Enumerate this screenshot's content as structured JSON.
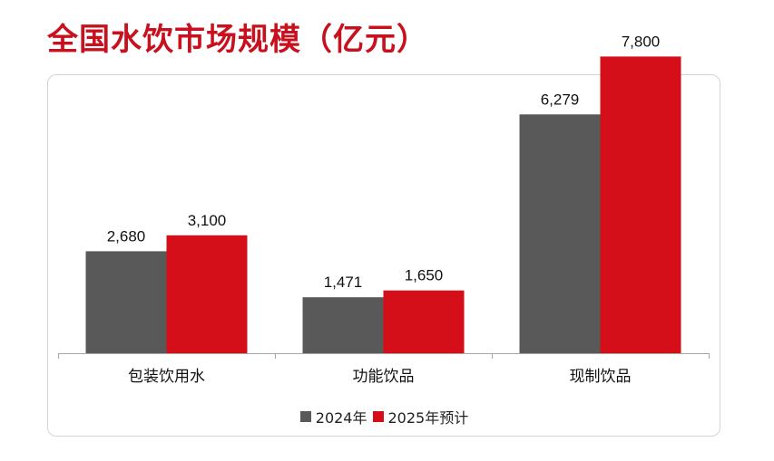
{
  "title": "全国水饮市场规模（亿元）",
  "colors": {
    "title": "#c8101e",
    "series_2024": "#595959",
    "series_2025": "#d50f1a",
    "axis": "#a6a6a6"
  },
  "chart_data": {
    "type": "bar",
    "title": "全国水饮市场规模（亿元）",
    "categories": [
      "包装饮用水",
      "功能饮品",
      "现制饮品"
    ],
    "series": [
      {
        "name": "2024年",
        "values": [
          2680,
          1471,
          6279
        ],
        "labels": [
          "2,680",
          "1,471",
          "6,279"
        ]
      },
      {
        "name": "2025年预计",
        "values": [
          3100,
          1650,
          7800
        ],
        "labels": [
          "3,100",
          "1,650",
          "7,800"
        ]
      }
    ],
    "ylim": [
      0,
      9000
    ],
    "grid": false,
    "legend": "bottom",
    "xlabel": "",
    "ylabel": ""
  }
}
